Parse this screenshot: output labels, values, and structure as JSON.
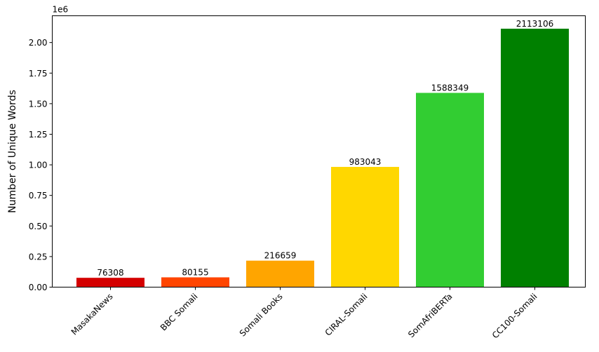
{
  "chart_data": {
    "type": "bar",
    "categories": [
      "MasakaNews",
      "BBC Somali",
      "Somali Books",
      "CIRAL-Somali",
      "SomAfriBERTa",
      "CC100-Somali"
    ],
    "values": [
      76308,
      80155,
      216659,
      983043,
      1588349,
      2113106
    ],
    "value_labels": [
      "76308",
      "80155",
      "216659",
      "983043",
      "1588349",
      "2113106"
    ],
    "colors": [
      "#d40000",
      "#ff4500",
      "#ffa500",
      "#ffd700",
      "#32cd32",
      "#008000"
    ],
    "ylabel": "Number of Unique Words",
    "offset_text": "1e6",
    "ylim": [
      0,
      2218761
    ],
    "yticks": [
      0,
      250000,
      500000,
      750000,
      1000000,
      1250000,
      1500000,
      1750000,
      2000000
    ],
    "ytick_labels": [
      "0.00",
      "0.25",
      "0.50",
      "0.75",
      "1.00",
      "1.25",
      "1.50",
      "1.75",
      "2.00"
    ],
    "xtick_rotation": 45,
    "grid": false,
    "legend": false
  }
}
